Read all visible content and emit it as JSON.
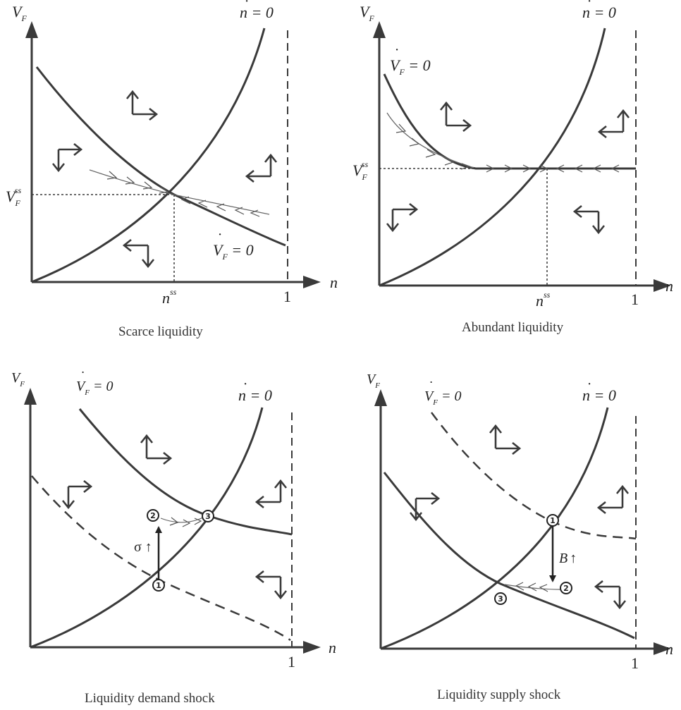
{
  "panels": {
    "scarce": {
      "caption": "Scarce liquidity",
      "y_axis": "V",
      "y_axis_sub": "F",
      "x_axis": "n",
      "x_tick": "1",
      "ss_x": "n",
      "ss_x_sup": "ss",
      "ss_y": "V",
      "ss_y_sub": "F",
      "ss_y_sup": "ss",
      "ndot_label": "n = 0",
      "vdot_label": "V",
      "vdot_sub": "F",
      "vdot_eq": " = 0"
    },
    "abundant": {
      "caption": "Abundant liquidity",
      "y_axis": "V",
      "y_axis_sub": "F",
      "x_axis": "n",
      "x_tick": "1",
      "ss_x": "n",
      "ss_x_sup": "ss",
      "ss_y": "V",
      "ss_y_sub": "F",
      "ss_y_sup": "ss",
      "ndot_label": "n = 0",
      "vdot_label": "V",
      "vdot_sub": "F",
      "vdot_eq": " = 0"
    },
    "demand": {
      "caption": "Liquidity demand shock",
      "y_axis": "V",
      "y_axis_sub": "F",
      "x_axis": "n",
      "x_tick": "1",
      "ndot_label": "n = 0",
      "vdot_label": "V",
      "vdot_sub": "F",
      "vdot_eq": " = 0",
      "shock_label": "σ ↑",
      "points": [
        "1",
        "2",
        "3"
      ]
    },
    "supply": {
      "caption": "Liquidity supply shock",
      "y_axis": "V",
      "y_axis_sub": "F",
      "x_axis": "n",
      "x_tick": "1",
      "ndot_label": "n = 0",
      "vdot_label": "V",
      "vdot_sub": "F",
      "vdot_eq": " = 0",
      "shock_label": "B",
      "shock_arrow": "↑",
      "points": [
        "1",
        "2",
        "3"
      ]
    }
  }
}
